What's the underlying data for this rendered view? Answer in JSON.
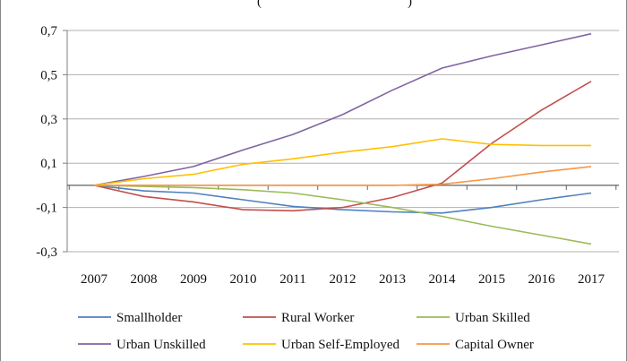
{
  "chart_data": {
    "type": "line",
    "title_fragment": "(",
    "title_fragment_right": ")",
    "x": [
      "2007",
      "2008",
      "2009",
      "2010",
      "2011",
      "2012",
      "2013",
      "2014",
      "2015",
      "2016",
      "2017"
    ],
    "y_ticks": [
      "0,7",
      "0,5",
      "0,3",
      "0,1",
      "-0,1",
      "-0,3"
    ],
    "y_tick_values": [
      0.7,
      0.5,
      0.3,
      0.1,
      -0.1,
      -0.3
    ],
    "ylim": [
      -0.3,
      0.7
    ],
    "grid": "horizontal",
    "legend_position": "bottom",
    "series": [
      {
        "name": "Smallholder",
        "color": "#4f81bd",
        "values": [
          0,
          -0.025,
          -0.035,
          -0.065,
          -0.095,
          -0.11,
          -0.12,
          -0.125,
          -0.1,
          -0.065,
          -0.035
        ]
      },
      {
        "name": "Rural Worker",
        "color": "#c0504d",
        "values": [
          0,
          -0.05,
          -0.075,
          -0.11,
          -0.115,
          -0.1,
          -0.055,
          0.01,
          0.19,
          0.34,
          0.47
        ]
      },
      {
        "name": "Urban Skilled",
        "color": "#9bbb59",
        "values": [
          0,
          -0.005,
          -0.01,
          -0.02,
          -0.035,
          -0.065,
          -0.1,
          -0.14,
          -0.185,
          -0.225,
          -0.265
        ]
      },
      {
        "name": "Urban Unskilled",
        "color": "#8064a2",
        "values": [
          0,
          0.04,
          0.085,
          0.16,
          0.23,
          0.32,
          0.43,
          0.53,
          0.585,
          0.635,
          0.685
        ]
      },
      {
        "name": "Urban Self-Employed",
        "color": "#ffc000",
        "values": [
          0,
          0.03,
          0.05,
          0.095,
          0.12,
          0.15,
          0.175,
          0.21,
          0.185,
          0.18,
          0.18
        ]
      },
      {
        "name": "Capital Owner",
        "color": "#f79646",
        "values": [
          0,
          0,
          0,
          0,
          0,
          0,
          0,
          0.005,
          0.03,
          0.06,
          0.085
        ]
      }
    ]
  }
}
